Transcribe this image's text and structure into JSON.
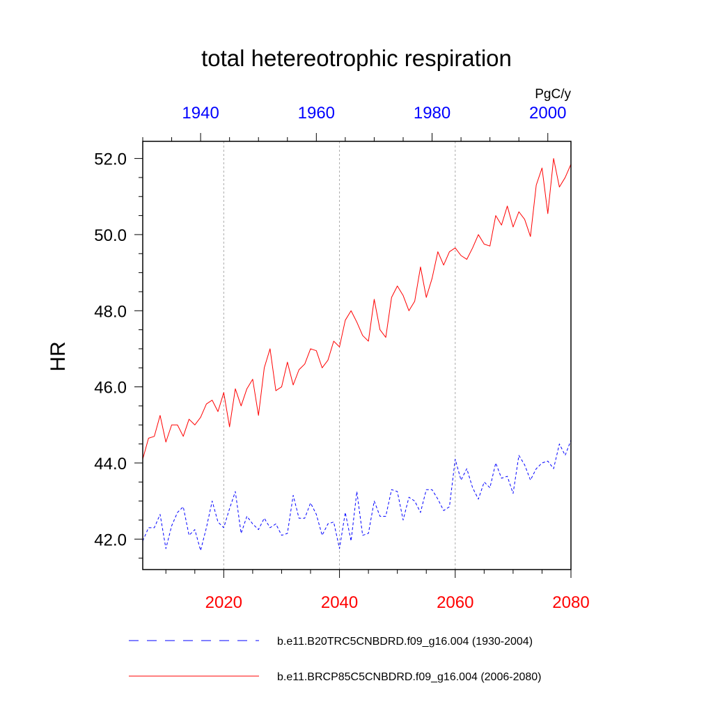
{
  "chart_data": {
    "type": "line",
    "title": "total hetereotrophic respiration",
    "ylabel": "HR",
    "units": "PgC/y",
    "ylim": [
      41.2,
      52.45
    ],
    "y_ticks": [
      "42.0",
      "44.0",
      "46.0",
      "48.0",
      "50.0",
      "52.0"
    ],
    "y_tick_values": [
      42,
      44,
      46,
      48,
      50,
      52
    ],
    "y_minor_step": 0.5,
    "bottom_axis": {
      "range": [
        2006,
        2080
      ],
      "ticks": [
        "2020",
        "2040",
        "2060",
        "2080"
      ],
      "tick_values": [
        2020,
        2040,
        2060,
        2080
      ],
      "minor_step": 5,
      "color": "#ff0000"
    },
    "top_axis": {
      "range": [
        1930,
        2004
      ],
      "ticks": [
        "1940",
        "1960",
        "1980",
        "2000"
      ],
      "tick_values": [
        1940,
        1960,
        1980,
        2000
      ],
      "minor_step": 5,
      "color": "#0000ff"
    },
    "gridlines_x": [
      2020,
      2040,
      2060
    ],
    "series": [
      {
        "name": "b.e11.B20TRC5CNBDRD.f09_g16.004 (1930-2004)",
        "color": "#0000ff",
        "style": "dashed",
        "x_start": 1930,
        "values": [
          41.95,
          42.3,
          42.3,
          42.65,
          41.75,
          42.35,
          42.7,
          42.85,
          42.1,
          42.25,
          41.7,
          42.3,
          43.0,
          42.45,
          42.3,
          42.8,
          43.25,
          42.15,
          42.6,
          42.4,
          42.25,
          42.55,
          42.3,
          42.4,
          42.1,
          42.15,
          43.15,
          42.55,
          42.55,
          42.95,
          42.65,
          42.1,
          42.4,
          42.45,
          41.75,
          42.7,
          41.95,
          43.25,
          42.1,
          42.15,
          43.0,
          42.6,
          42.6,
          43.3,
          43.25,
          42.5,
          43.1,
          43.0,
          42.7,
          43.3,
          43.3,
          43.05,
          42.75,
          42.85,
          44.1,
          43.55,
          43.85,
          43.35,
          43.05,
          43.5,
          43.35,
          44.0,
          43.6,
          43.65,
          43.2,
          44.2,
          43.95,
          43.55,
          43.85,
          44.0,
          44.05,
          43.85,
          44.5,
          44.2,
          44.6
        ]
      },
      {
        "name": "b.e11.BRCP85C5CNBDRD.f09_g16.004 (2006-2080)",
        "color": "#ff0000",
        "style": "solid",
        "x_start": 2006,
        "values": [
          44.1,
          44.65,
          44.7,
          45.25,
          44.55,
          45.0,
          45.0,
          44.7,
          45.15,
          45.0,
          45.2,
          45.55,
          45.65,
          45.35,
          45.85,
          44.95,
          45.95,
          45.5,
          45.95,
          46.2,
          45.25,
          46.5,
          47.0,
          45.9,
          46.0,
          46.65,
          46.05,
          46.45,
          46.6,
          47.0,
          46.95,
          46.5,
          46.7,
          47.2,
          47.05,
          47.75,
          48.0,
          47.7,
          47.35,
          47.2,
          48.3,
          47.5,
          47.3,
          48.35,
          48.65,
          48.4,
          48.0,
          48.25,
          49.15,
          48.35,
          48.85,
          49.55,
          49.2,
          49.55,
          49.65,
          49.45,
          49.35,
          49.65,
          50.0,
          49.75,
          49.7,
          50.5,
          50.25,
          50.75,
          50.2,
          50.6,
          50.4,
          49.95,
          51.3,
          51.75,
          50.55,
          52.0,
          51.25,
          51.5,
          51.85
        ]
      }
    ]
  }
}
